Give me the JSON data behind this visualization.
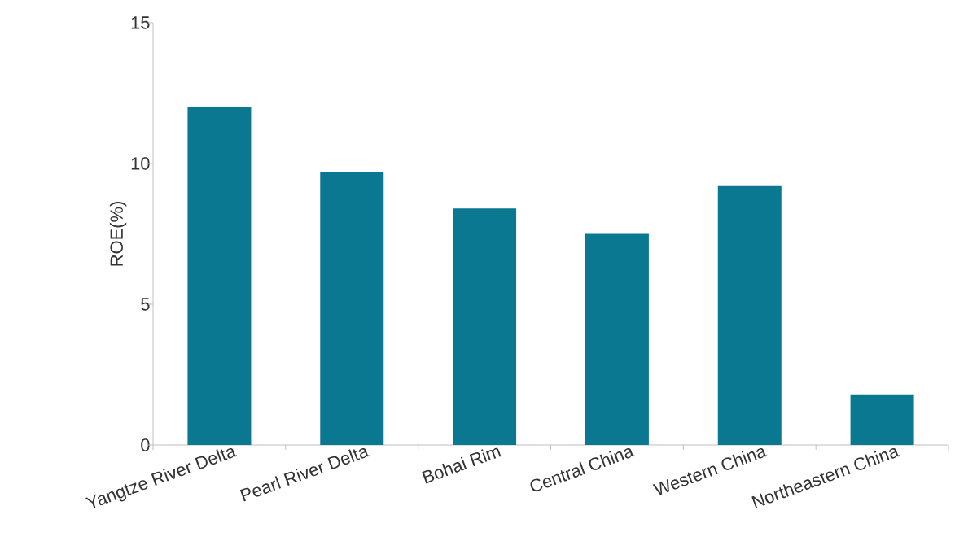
{
  "chart_data": {
    "type": "bar",
    "ylabel": "ROE(%)",
    "categories": [
      "Yangtze River Delta",
      "Pearl River Delta",
      "Bohai Rim",
      "Central China",
      "Western China",
      "Northeastern China"
    ],
    "values": [
      12.0,
      9.7,
      8.4,
      7.5,
      9.2,
      1.8
    ],
    "color": "#0a7890",
    "ylim": [
      0,
      15
    ],
    "yticks": [
      0,
      5,
      10,
      15
    ],
    "grid": false
  }
}
